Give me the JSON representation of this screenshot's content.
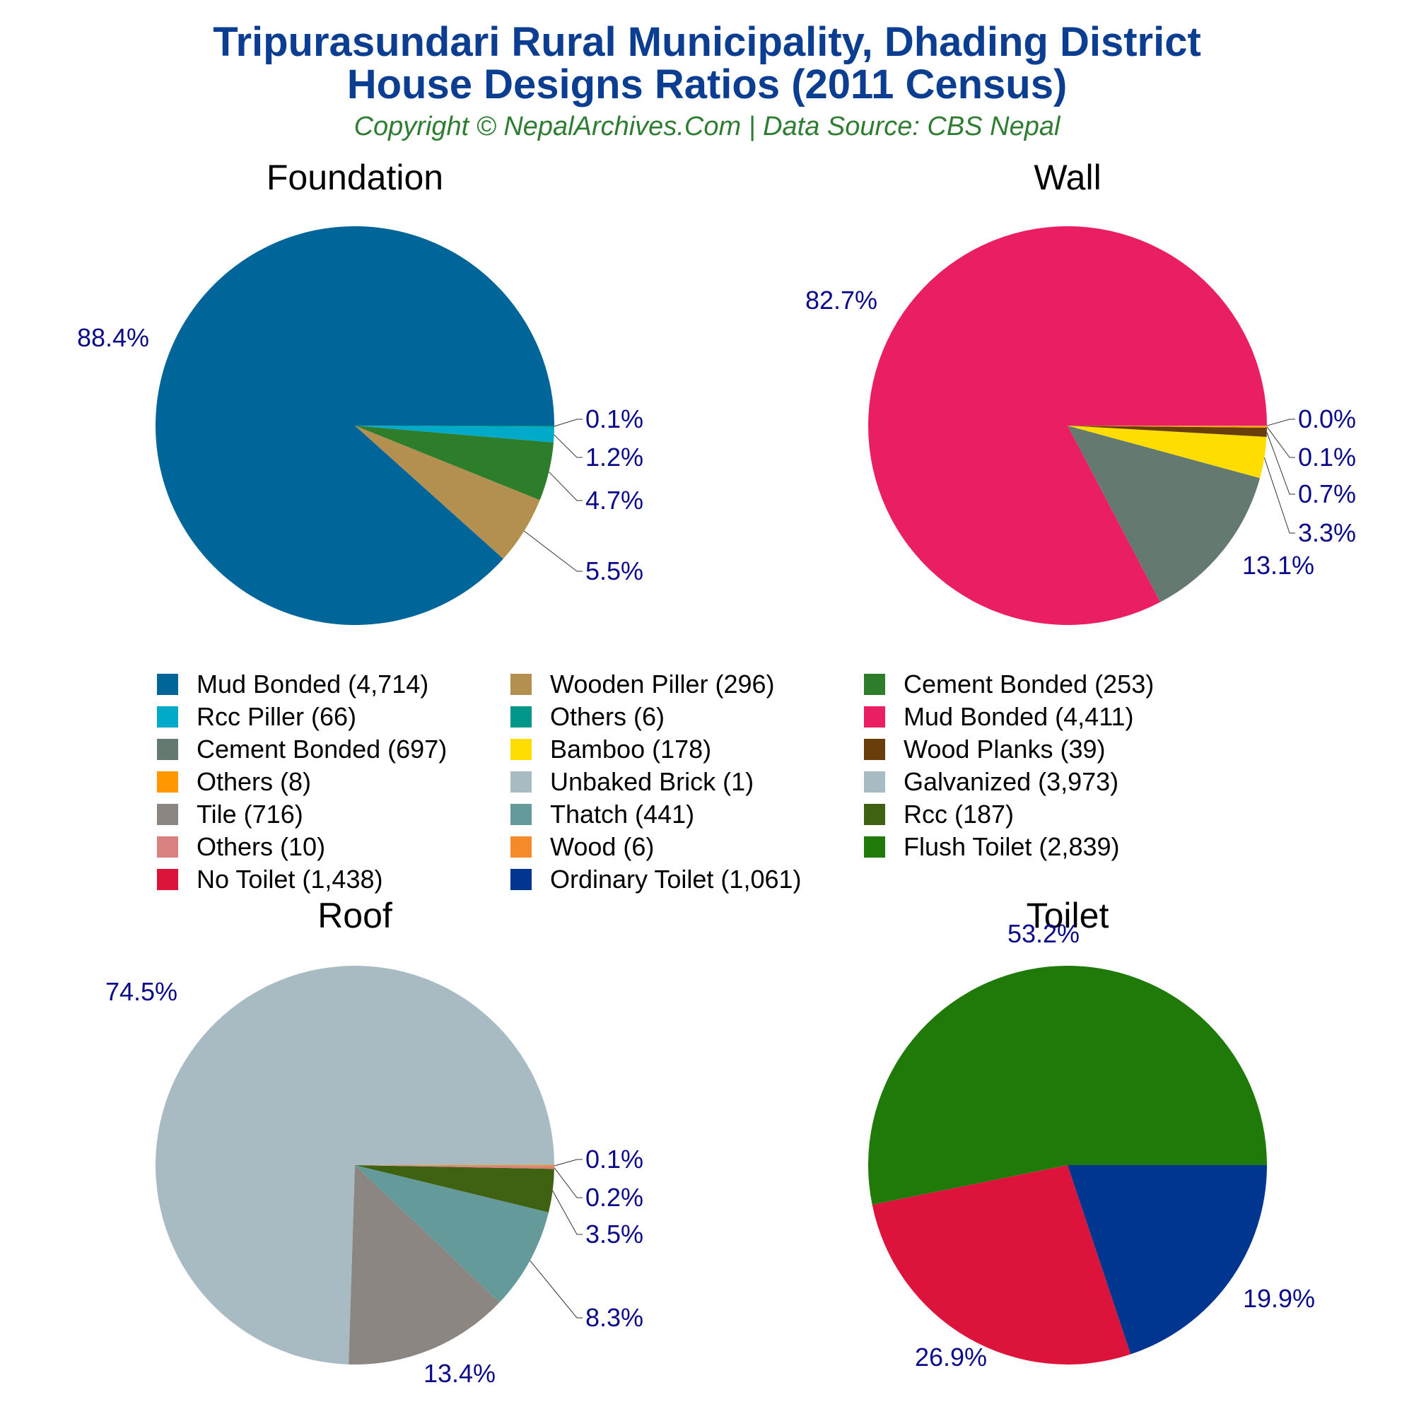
{
  "title_line1": "Tripurasundari Rural Municipality, Dhading District",
  "title_line2": "House Designs Ratios (2011 Census)",
  "subtitle": "Copyright © NepalArchives.Com | Data Source: CBS Nepal",
  "legend": [
    {
      "label": "Mud Bonded (4,714)",
      "color": "#006699"
    },
    {
      "label": "Wooden Piller (296)",
      "color": "#b38f50"
    },
    {
      "label": "Cement Bonded (253)",
      "color": "#2e7d2b"
    },
    {
      "label": "Rcc Piller (66)",
      "color": "#00aac8"
    },
    {
      "label": "Others (6)",
      "color": "#00968a"
    },
    {
      "label": "Mud Bonded (4,411)",
      "color": "#e91e63"
    },
    {
      "label": "Cement Bonded (697)",
      "color": "#647a70"
    },
    {
      "label": "Bamboo (178)",
      "color": "#ffdd00"
    },
    {
      "label": "Wood Planks (39)",
      "color": "#6a3e0a"
    },
    {
      "label": "Others (8)",
      "color": "#ff9800"
    },
    {
      "label": "Unbaked Brick (1)",
      "color": "#a8bac2"
    },
    {
      "label": "Galvanized (3,973)",
      "color": "#a8bac2"
    },
    {
      "label": "Tile (716)",
      "color": "#8c8682"
    },
    {
      "label": "Thatch (441)",
      "color": "#659a9a"
    },
    {
      "label": "Rcc (187)",
      "color": "#3f6212"
    },
    {
      "label": "Others (10)",
      "color": "#d98080"
    },
    {
      "label": "Wood (6)",
      "color": "#f58a2a"
    },
    {
      "label": "Flush Toilet (2,839)",
      "color": "#1f7a0a"
    },
    {
      "label": "No Toilet (1,438)",
      "color": "#dc143c"
    },
    {
      "label": "Ordinary Toilet (1,061)",
      "color": "#003590"
    }
  ],
  "chart_data": [
    {
      "type": "pie",
      "title": "Foundation",
      "slices": [
        {
          "name": "Mud Bonded",
          "value": 4714,
          "label": "88.4%",
          "color": "#006699"
        },
        {
          "name": "Wooden Piller",
          "value": 296,
          "label": "5.5%",
          "color": "#b38f50"
        },
        {
          "name": "Cement Bonded",
          "value": 253,
          "label": "4.7%",
          "color": "#2e7d2b"
        },
        {
          "name": "Rcc Piller",
          "value": 66,
          "label": "1.2%",
          "color": "#00aac8"
        },
        {
          "name": "Others",
          "value": 6,
          "label": "0.1%",
          "color": "#00968a"
        }
      ]
    },
    {
      "type": "pie",
      "title": "Wall",
      "slices": [
        {
          "name": "Mud Bonded",
          "value": 4411,
          "label": "82.7%",
          "color": "#e91e63"
        },
        {
          "name": "Cement Bonded",
          "value": 697,
          "label": "13.1%",
          "color": "#647a70"
        },
        {
          "name": "Bamboo",
          "value": 178,
          "label": "3.3%",
          "color": "#ffdd00"
        },
        {
          "name": "Wood Planks",
          "value": 39,
          "label": "0.7%",
          "color": "#6a3e0a"
        },
        {
          "name": "Others",
          "value": 8,
          "label": "0.1%",
          "color": "#ff9800"
        },
        {
          "name": "Unbaked Brick",
          "value": 1,
          "label": "0.0%",
          "color": "#a8bac2"
        }
      ]
    },
    {
      "type": "pie",
      "title": "Roof",
      "slices": [
        {
          "name": "Galvanized",
          "value": 3973,
          "label": "74.5%",
          "color": "#a8bac2"
        },
        {
          "name": "Tile",
          "value": 716,
          "label": "13.4%",
          "color": "#8c8682"
        },
        {
          "name": "Thatch",
          "value": 441,
          "label": "8.3%",
          "color": "#659a9a"
        },
        {
          "name": "Rcc",
          "value": 187,
          "label": "3.5%",
          "color": "#3f6212"
        },
        {
          "name": "Others",
          "value": 10,
          "label": "0.2%",
          "color": "#d98080"
        },
        {
          "name": "Wood",
          "value": 6,
          "label": "0.1%",
          "color": "#f58a2a"
        }
      ]
    },
    {
      "type": "pie",
      "title": "Toilet",
      "slices": [
        {
          "name": "Flush Toilet",
          "value": 2839,
          "label": "53.2%",
          "color": "#1f7a0a"
        },
        {
          "name": "No Toilet",
          "value": 1438,
          "label": "26.9%",
          "color": "#dc143c"
        },
        {
          "name": "Ordinary Toilet",
          "value": 1061,
          "label": "19.9%",
          "color": "#003590"
        }
      ]
    }
  ]
}
